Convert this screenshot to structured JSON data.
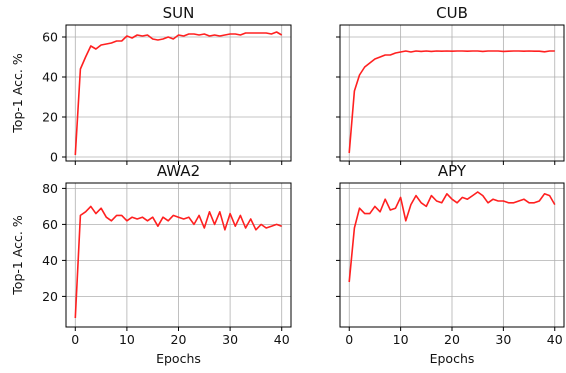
{
  "figure": {
    "ylabel": "Top-1 Acc. %",
    "xlabel": "Epochs",
    "line_color": "#ff2020"
  },
  "chart_data": [
    {
      "type": "line",
      "title": "SUN",
      "xlim": [
        -1.8,
        41.8
      ],
      "ylim": [
        -2,
        66
      ],
      "xticks": [
        0,
        10,
        20,
        30,
        40
      ],
      "yticks": [
        0,
        20,
        40,
        60
      ],
      "show_xticklabels": false,
      "show_yticklabels": true,
      "show_xlabel": false,
      "show_ylabel": true,
      "grid": true,
      "x": [
        0,
        1,
        2,
        3,
        4,
        5,
        6,
        7,
        8,
        9,
        10,
        11,
        12,
        13,
        14,
        15,
        16,
        17,
        18,
        19,
        20,
        21,
        22,
        23,
        24,
        25,
        26,
        27,
        28,
        29,
        30,
        31,
        32,
        33,
        34,
        35,
        36,
        37,
        38,
        39,
        40
      ],
      "y": [
        1,
        44,
        50,
        55.5,
        54,
        56,
        56.5,
        57,
        58,
        58,
        60.5,
        59.5,
        61,
        60.5,
        61,
        59,
        58.5,
        59,
        60,
        59,
        61,
        60.5,
        61.5,
        61.5,
        61,
        61.5,
        60.5,
        61,
        60.5,
        61,
        61.5,
        61.5,
        61,
        62,
        62,
        62,
        62,
        62,
        61.5,
        62.5,
        61
      ]
    },
    {
      "type": "line",
      "title": "CUB",
      "xlim": [
        -1.8,
        41.8
      ],
      "ylim": [
        -2,
        66
      ],
      "xticks": [
        0,
        10,
        20,
        30,
        40
      ],
      "yticks": [
        0,
        20,
        40,
        60
      ],
      "show_xticklabels": false,
      "show_yticklabels": false,
      "show_xlabel": false,
      "show_ylabel": false,
      "grid": true,
      "x": [
        0,
        1,
        2,
        3,
        4,
        5,
        6,
        7,
        8,
        9,
        10,
        11,
        12,
        13,
        14,
        15,
        16,
        17,
        18,
        19,
        20,
        21,
        22,
        23,
        24,
        25,
        26,
        27,
        28,
        29,
        30,
        31,
        32,
        33,
        34,
        35,
        36,
        37,
        38,
        39,
        40
      ],
      "y": [
        2,
        33,
        41,
        45,
        47,
        49,
        50,
        51,
        51,
        52,
        52.5,
        53,
        52.5,
        53,
        52.8,
        53,
        52.8,
        53,
        52.9,
        53,
        52.9,
        53,
        53,
        52.9,
        53,
        53,
        52.8,
        53,
        53,
        53,
        52.8,
        52.9,
        53,
        53,
        52.9,
        53,
        52.9,
        52.9,
        52.6,
        53,
        53
      ]
    },
    {
      "type": "line",
      "title": "AWA2",
      "xlim": [
        -1.8,
        41.8
      ],
      "ylim": [
        3,
        83
      ],
      "xticks": [
        0,
        10,
        20,
        30,
        40
      ],
      "yticks": [
        20,
        40,
        60,
        80
      ],
      "xticklabels": [
        "0",
        "10",
        "20",
        "30",
        "40"
      ],
      "show_xticklabels": true,
      "show_yticklabels": true,
      "show_xlabel": true,
      "show_ylabel": true,
      "grid": true,
      "x": [
        0,
        1,
        2,
        3,
        4,
        5,
        6,
        7,
        8,
        9,
        10,
        11,
        12,
        13,
        14,
        15,
        16,
        17,
        18,
        19,
        20,
        21,
        22,
        23,
        24,
        25,
        26,
        27,
        28,
        29,
        30,
        31,
        32,
        33,
        34,
        35,
        36,
        37,
        38,
        39,
        40
      ],
      "y": [
        8,
        65,
        67,
        70,
        66,
        69,
        64,
        62,
        65,
        65,
        62,
        64,
        63,
        64,
        62,
        64,
        59,
        64,
        62,
        65,
        64,
        63,
        64,
        60,
        65,
        58,
        67,
        60,
        67,
        57,
        66,
        59,
        65,
        58,
        63,
        57,
        60,
        58,
        59,
        60,
        59
      ]
    },
    {
      "type": "line",
      "title": "APY",
      "xlim": [
        -1.8,
        41.8
      ],
      "ylim": [
        3,
        83
      ],
      "xticks": [
        0,
        10,
        20,
        30,
        40
      ],
      "yticks": [
        20,
        40,
        60,
        80
      ],
      "xticklabels": [
        "0",
        "10",
        "20",
        "30",
        "40"
      ],
      "show_xticklabels": true,
      "show_yticklabels": false,
      "show_xlabel": true,
      "show_ylabel": false,
      "grid": true,
      "x": [
        0,
        1,
        2,
        3,
        4,
        5,
        6,
        7,
        8,
        9,
        10,
        11,
        12,
        13,
        14,
        15,
        16,
        17,
        18,
        19,
        20,
        21,
        22,
        23,
        24,
        25,
        26,
        27,
        28,
        29,
        30,
        31,
        32,
        33,
        34,
        35,
        36,
        37,
        38,
        39,
        40
      ],
      "y": [
        28,
        58,
        69,
        66,
        66,
        70,
        67,
        74,
        68,
        69,
        75,
        62,
        71,
        76,
        72,
        70,
        76,
        73,
        72,
        77,
        74,
        72,
        75,
        74,
        76,
        78,
        76,
        72,
        74,
        73,
        73,
        72,
        72,
        73,
        74,
        72,
        72,
        73,
        77,
        76,
        71
      ]
    }
  ]
}
